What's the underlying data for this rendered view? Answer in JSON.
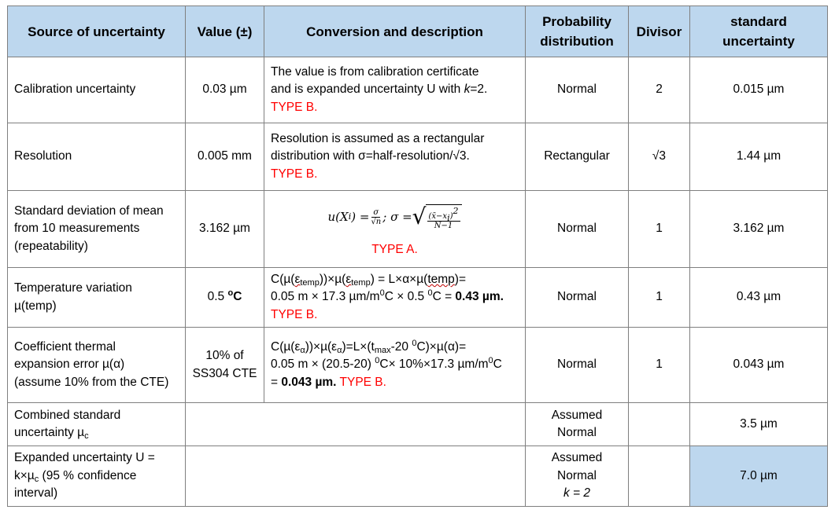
{
  "headers": {
    "source": "Source of uncertainty",
    "value": "Value (±)",
    "conversion": "Conversion and description",
    "distribution_l1": "Probability",
    "distribution_l2": "distribution",
    "divisor": "Divisor",
    "standard_l1": "standard",
    "standard_l2": "uncertainty"
  },
  "rows": {
    "calibration": {
      "source": "Calibration uncertainty",
      "value": "0.03 µm",
      "desc_l1": "The value is from calibration certificate",
      "desc_l2a": "and is expanded uncertainty U with ",
      "desc_k": "k",
      "desc_l2b": "=2.",
      "type": "TYPE B.",
      "distribution": "Normal",
      "divisor": "2",
      "standard": "0.015 µm"
    },
    "resolution": {
      "source": "Resolution",
      "value": "0.005 mm",
      "desc_l1": "Resolution is assumed as a rectangular",
      "desc_l2": "distribution with σ=half-resolution/√3.",
      "type": "TYPE B.",
      "distribution": "Rectangular",
      "divisor": "√3",
      "standard": "1.44 µm"
    },
    "repeatability": {
      "source_l1": "Standard deviation of mean",
      "source_l2": "from 10 measurements",
      "source_l3": "(repeatability)",
      "value": "3.162 µm",
      "f_lhs": "u(X",
      "f_i": "i",
      "f_eq": ") =",
      "f_sigma": "σ",
      "f_sqrtn": "√n",
      "f_semi": "; σ =",
      "f_num": "(x̄−x",
      "f_num_i": "i",
      "f_num_end": ")",
      "f_num_sq": "2",
      "f_den": "N−1",
      "type": "TYPE A.",
      "distribution": "Normal",
      "divisor": "1",
      "standard": "3.162 µm"
    },
    "temperature": {
      "source_l1": "Temperature variation",
      "source_l2": "µ(temp)",
      "value_num": "0.5 ",
      "value_sup": "o",
      "value_unit": "C",
      "f1_a": "C(µ(",
      "f1_eps1": "ε",
      "f1_sub1": "temp",
      "f1_b": "))×µ(",
      "f1_eps2": "ε",
      "f1_sub2": "temp",
      "f1_c": ") = L×α×µ(",
      "f1_temp": "temp",
      "f1_d": ")=",
      "f2_a": "0.05 m × 17.3 µm/m",
      "f2_sup1": "0",
      "f2_b": "C × 0.5 ",
      "f2_sup2": "0",
      "f2_c": "C = ",
      "f2_bold": "0.43 µm.",
      "type": "TYPE B.",
      "distribution": "Normal",
      "divisor": "1",
      "standard": "0.43 µm"
    },
    "cte": {
      "source_l1": "Coefficient thermal",
      "source_l2": "expansion error µ(α)",
      "source_l3": "(assume 10% from the CTE)",
      "value_l1": "10% of",
      "value_l2": "SS304 CTE",
      "f1_a": "C(µ(ε",
      "f1_sub1": "α",
      "f1_b": "))×µ(ε",
      "f1_sub2": "α",
      "f1_c": ")=L×(t",
      "f1_sub3": "max",
      "f1_d": "-20 ",
      "f1_sup": "0",
      "f1_e": "C)×µ(α)=",
      "f2_a": "0.05 m × (20.5-20) ",
      "f2_sup1": "0",
      "f2_b": "C× 10%×17.3 µm/m",
      "f2_sup2": "0",
      "f2_c": "C",
      "f3_a": "= ",
      "f3_bold": "0.043 µm.",
      "type": " TYPE B.",
      "distribution": "Normal",
      "divisor": "1",
      "standard": "0.043 µm"
    },
    "combined": {
      "source_l1": "Combined standard",
      "source_l2": "uncertainty µ",
      "source_sub": "c",
      "distribution": "Assumed Normal",
      "standard": "3.5 µm"
    },
    "expanded": {
      "source_l1": "Expanded uncertainty U =",
      "source_l2a": "k×µ",
      "source_sub": "c",
      "source_l2b": " (95 % confidence",
      "source_l3": "interval)",
      "distribution_l1": "Assumed Normal",
      "distribution_l2": "k = 2",
      "standard": "7.0 µm"
    }
  }
}
